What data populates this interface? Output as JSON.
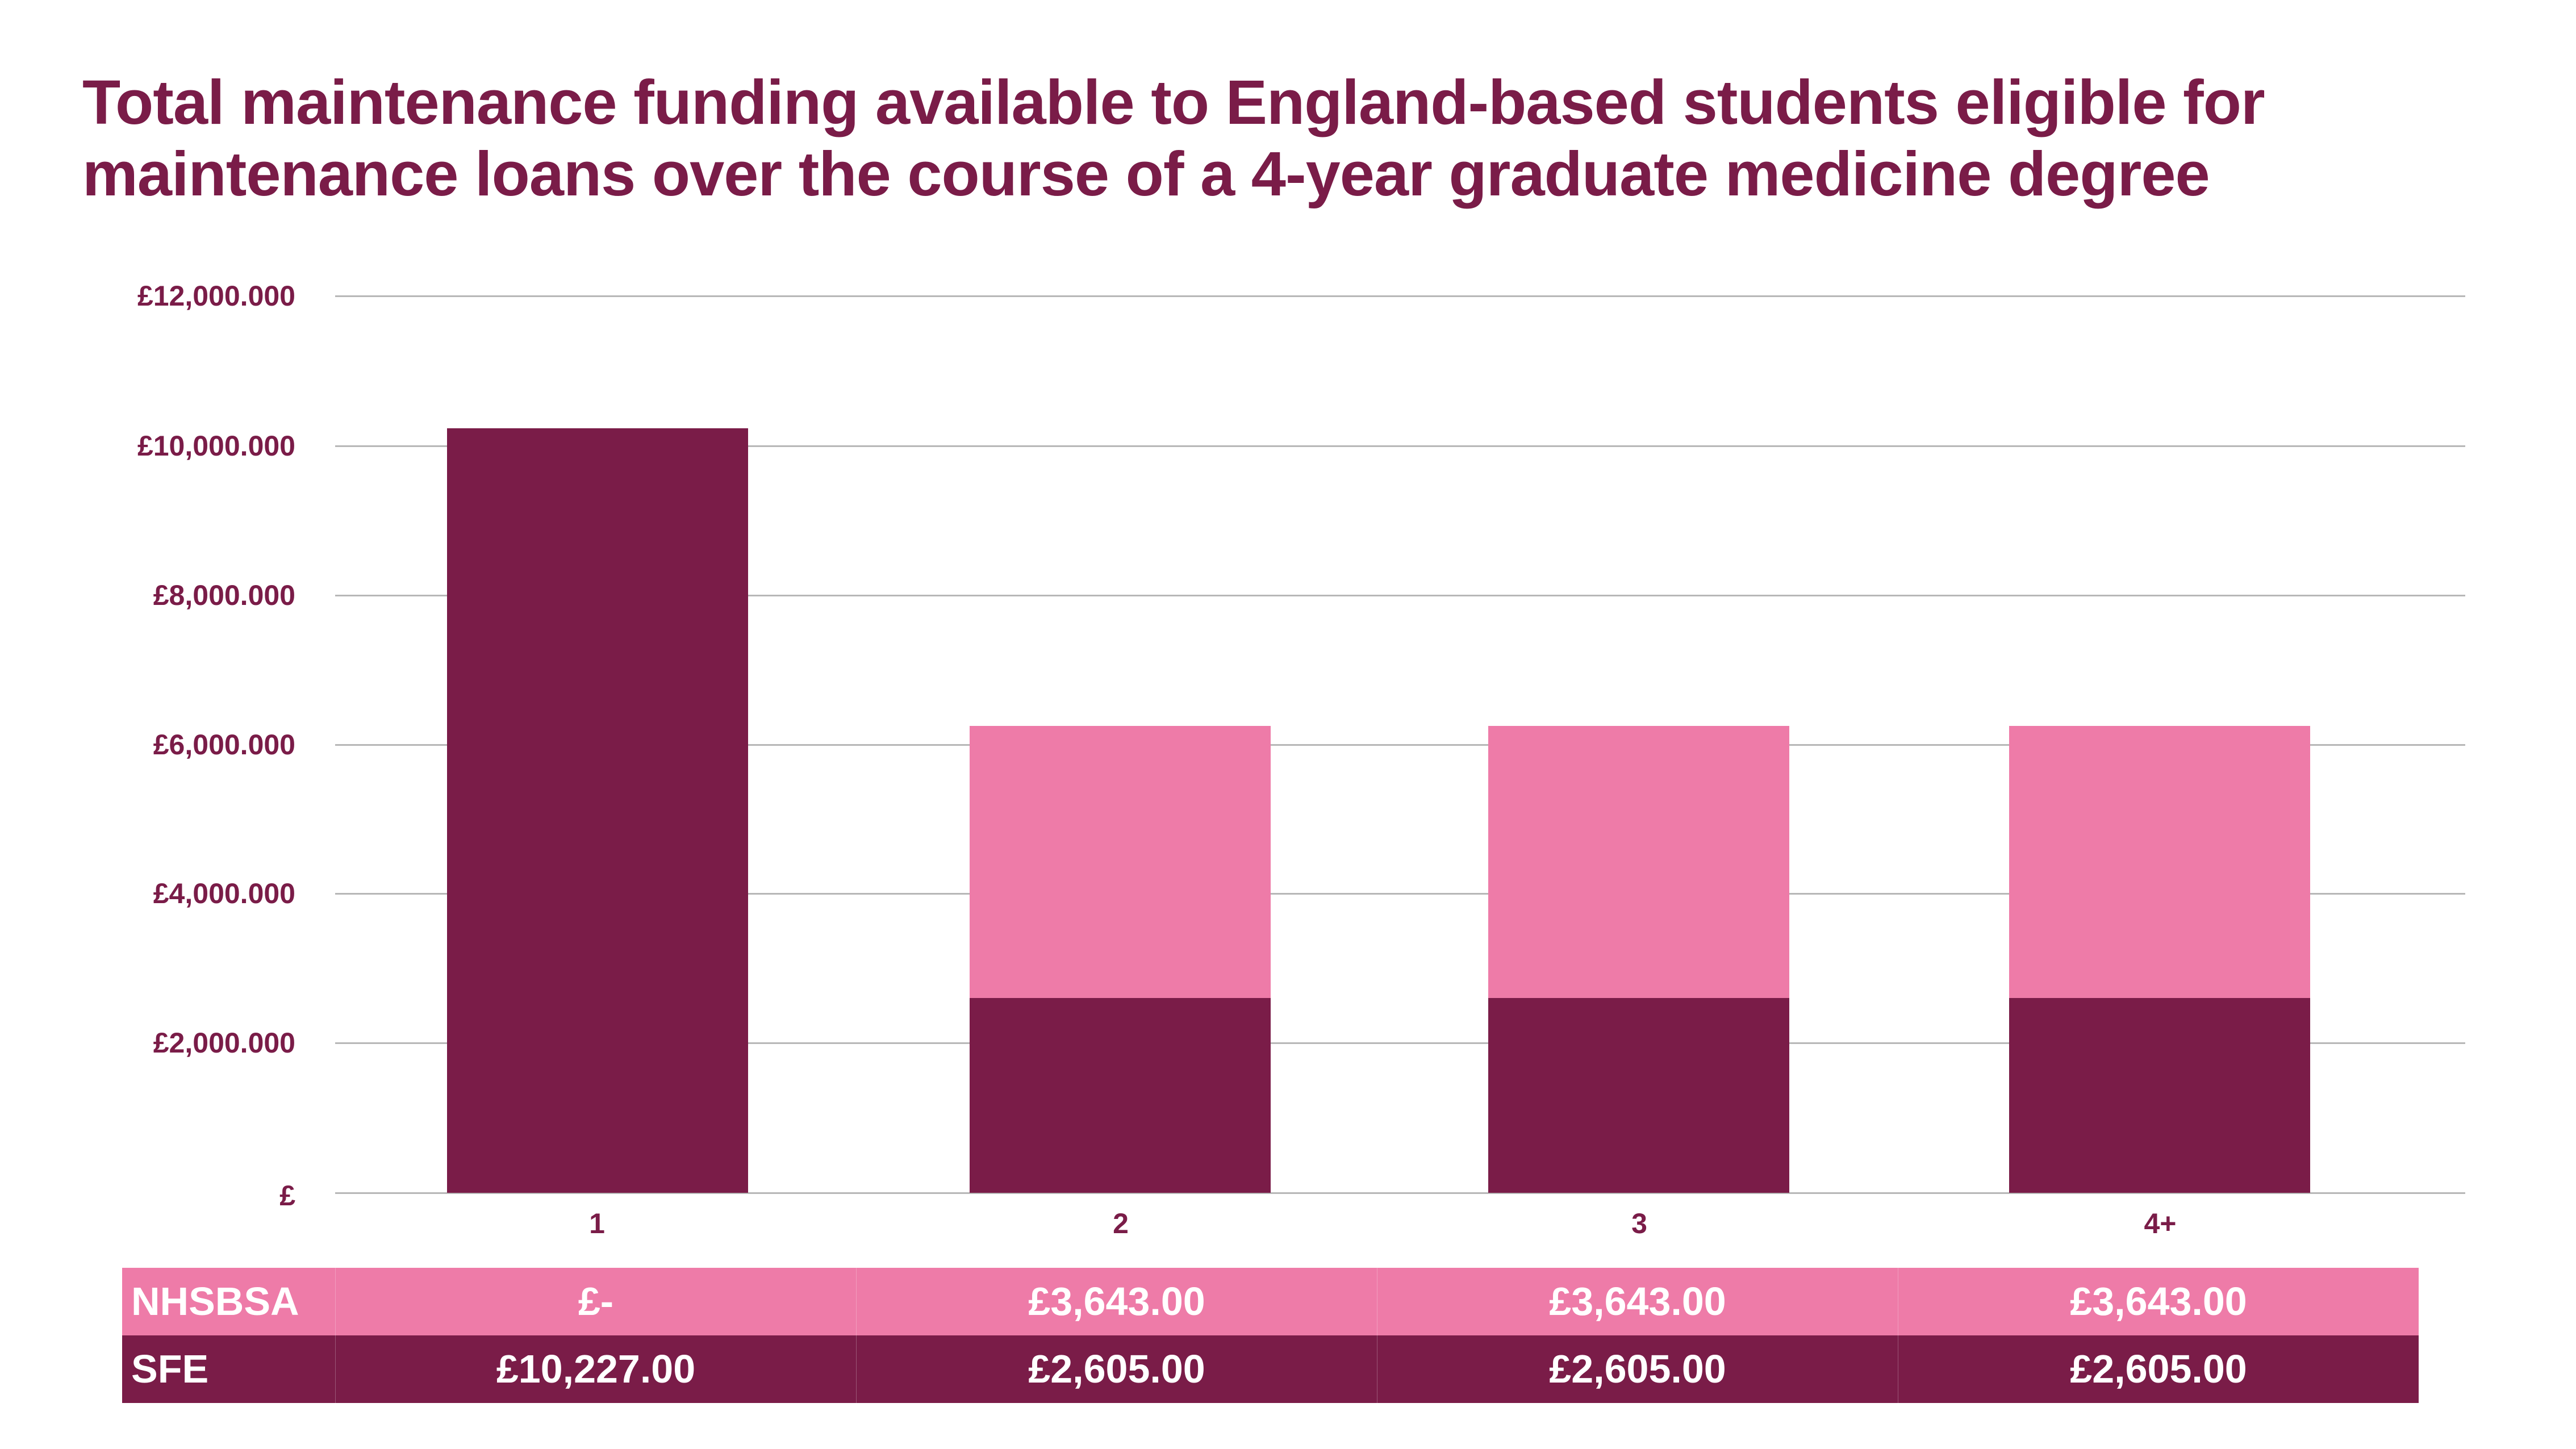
{
  "title": {
    "line1": "Total maintenance funding available to England-based students eligible for",
    "line2": "maintenance loans over the course of a 4-year graduate medicine degree"
  },
  "colors": {
    "sfe": "#7A1C48",
    "nhsbsa": "#EE7BA8",
    "text": "#7A1C48",
    "grid": "#b7b7b7"
  },
  "y_axis": {
    "ticks": [
      "£12,000.000",
      "£10,000.000",
      "£8,000.000",
      "£6,000.000",
      "£4,000.000",
      "£2,000.000",
      "£"
    ]
  },
  "x_axis": {
    "ticks": [
      "1",
      "2",
      "3",
      "4+"
    ]
  },
  "table": {
    "rows": [
      {
        "label": "NHSBSA",
        "values": [
          "£-",
          "£3,643.00",
          "£3,643.00",
          "£3,643.00"
        ]
      },
      {
        "label": "SFE",
        "values": [
          "£10,227.00",
          "£2,605.00",
          "£2,605.00",
          "£2,605.00"
        ]
      }
    ]
  },
  "chart_data": {
    "type": "bar",
    "stacked": true,
    "title": "Total maintenance funding available to England-based students eligible for maintenance loans over the course of a 4-year graduate medicine degree",
    "xlabel": "",
    "ylabel": "",
    "categories": [
      "1",
      "2",
      "3",
      "4+"
    ],
    "series": [
      {
        "name": "SFE",
        "color": "#7A1C48",
        "values": [
          10227,
          2605,
          2605,
          2605
        ]
      },
      {
        "name": "NHSBSA",
        "color": "#EE7BA8",
        "values": [
          0,
          3643,
          3643,
          3643
        ]
      }
    ],
    "y_tick_labels": [
      "£",
      "£2,000.000",
      "£4,000.000",
      "£6,000.000",
      "£8,000.000",
      "£10,000.000",
      "£12,000.000"
    ],
    "ylim": [
      0,
      12000
    ],
    "grid": true,
    "legend": "data table below chart (NHSBSA, SFE)"
  }
}
